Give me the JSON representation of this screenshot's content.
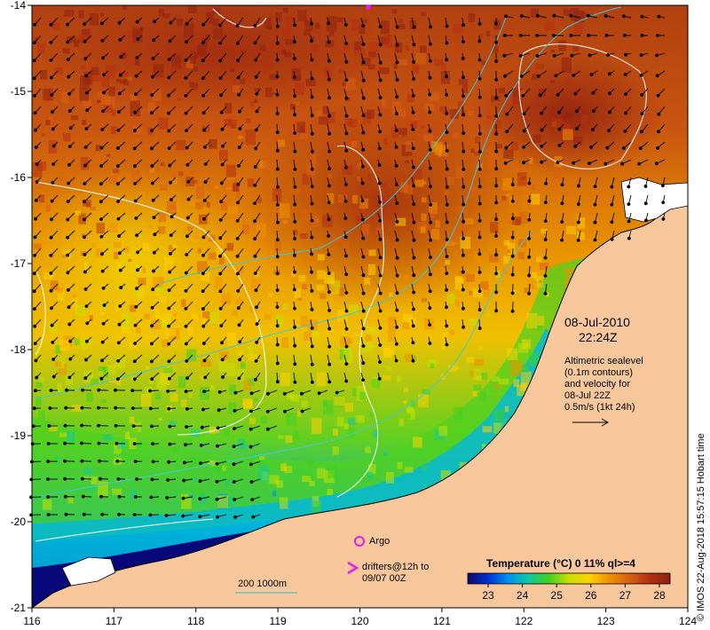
{
  "map": {
    "date": "08-Jul-2010",
    "time": "22:24Z",
    "altimetry_lines": [
      "Altimetric sealevel",
      "(0.1m contours)",
      "and velocity for",
      "08-Jul 22Z",
      "0.5m/s (1kt 24h)"
    ],
    "argo_label": "Argo",
    "drifters_label": [
      "drifters@12h to",
      "09/07 00Z"
    ],
    "depth_label": "200  1000m",
    "credit": "© IMOS 22-Aug-2018 15:57:15 Hobart time",
    "colorbar_title": "Temperature (°C) 0 11% ql>=4",
    "colorbar_ticks": [
      "23",
      "24",
      "25",
      "26",
      "27",
      "28"
    ],
    "lon_ticks": [
      "116",
      "117",
      "118",
      "119",
      "120",
      "121",
      "122",
      "123",
      "124"
    ],
    "lat_ticks": [
      "-14",
      "-15",
      "-16",
      "-17",
      "-18",
      "-19",
      "-20",
      "-21"
    ],
    "lon_range": [
      116,
      124
    ],
    "lat_range": [
      -21,
      -14
    ],
    "colors": {
      "land": "#f8c79c",
      "argo": "#e020e0",
      "depth_contour": "#40c8d8",
      "sealevel_contour": "#ffffff",
      "arrows": "#000000"
    },
    "colormap": [
      "#0a0a6e",
      "#0030d0",
      "#0090f0",
      "#10c8a0",
      "#40d020",
      "#c8e000",
      "#ffd000",
      "#f09000",
      "#d86010",
      "#b43010",
      "#902010"
    ]
  }
}
